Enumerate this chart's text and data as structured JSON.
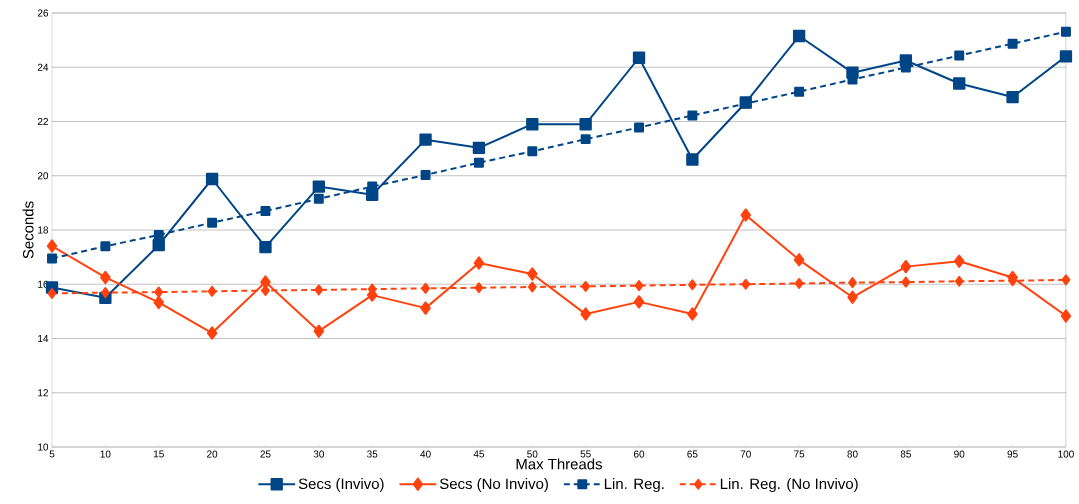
{
  "chart_data": {
    "type": "line",
    "xlabel": "Max Threads",
    "ylabel": "Seconds",
    "x": [
      5,
      10,
      15,
      20,
      25,
      30,
      35,
      40,
      45,
      50,
      55,
      60,
      65,
      70,
      75,
      80,
      85,
      90,
      95,
      100
    ],
    "xlim": [
      5,
      100
    ],
    "xticks": [
      5,
      10,
      15,
      20,
      25,
      30,
      35,
      40,
      45,
      50,
      55,
      60,
      65,
      70,
      75,
      80,
      85,
      90,
      95,
      100
    ],
    "ylim": [
      10,
      26
    ],
    "yticks": [
      10,
      12,
      14,
      16,
      18,
      20,
      22,
      24,
      26
    ],
    "grid": "y",
    "legend": "bottom",
    "series": [
      {
        "name": "Secs (Invivo)",
        "color": "#004586",
        "marker": "square",
        "line_style": "solid",
        "values": [
          15.88,
          15.5,
          17.44,
          19.88,
          17.37,
          19.6,
          19.3,
          21.33,
          21.03,
          21.9,
          21.9,
          24.35,
          20.6,
          22.7,
          25.15,
          23.8,
          24.25,
          23.4,
          22.9,
          24.4
        ]
      },
      {
        "name": "Secs (No Invivo)",
        "color": "#ff420e",
        "marker": "diamond",
        "line_style": "solid",
        "values": [
          17.41,
          16.25,
          15.33,
          14.2,
          16.08,
          14.27,
          15.6,
          15.12,
          16.78,
          16.38,
          14.9,
          15.35,
          14.9,
          18.55,
          16.9,
          15.52,
          16.65,
          16.85,
          16.25,
          14.83
        ]
      },
      {
        "name": "Lin. Reg.",
        "color": "#004586",
        "marker": "square",
        "line_style": "dashed",
        "values": [
          16.95,
          17.4,
          17.82,
          18.27,
          18.7,
          19.15,
          19.6,
          20.03,
          20.48,
          20.9,
          21.35,
          21.78,
          22.22,
          22.66,
          23.1,
          23.55,
          23.99,
          24.43,
          24.87,
          25.31
        ]
      },
      {
        "name": "Lin. Reg. (No Invivo)",
        "color": "#ff420e",
        "marker": "diamond",
        "line_style": "dashed",
        "values": [
          15.66,
          15.69,
          15.71,
          15.74,
          15.77,
          15.79,
          15.82,
          15.85,
          15.87,
          15.9,
          15.92,
          15.95,
          15.98,
          16.0,
          16.03,
          16.06,
          16.08,
          16.11,
          16.13,
          16.16
        ]
      }
    ]
  }
}
